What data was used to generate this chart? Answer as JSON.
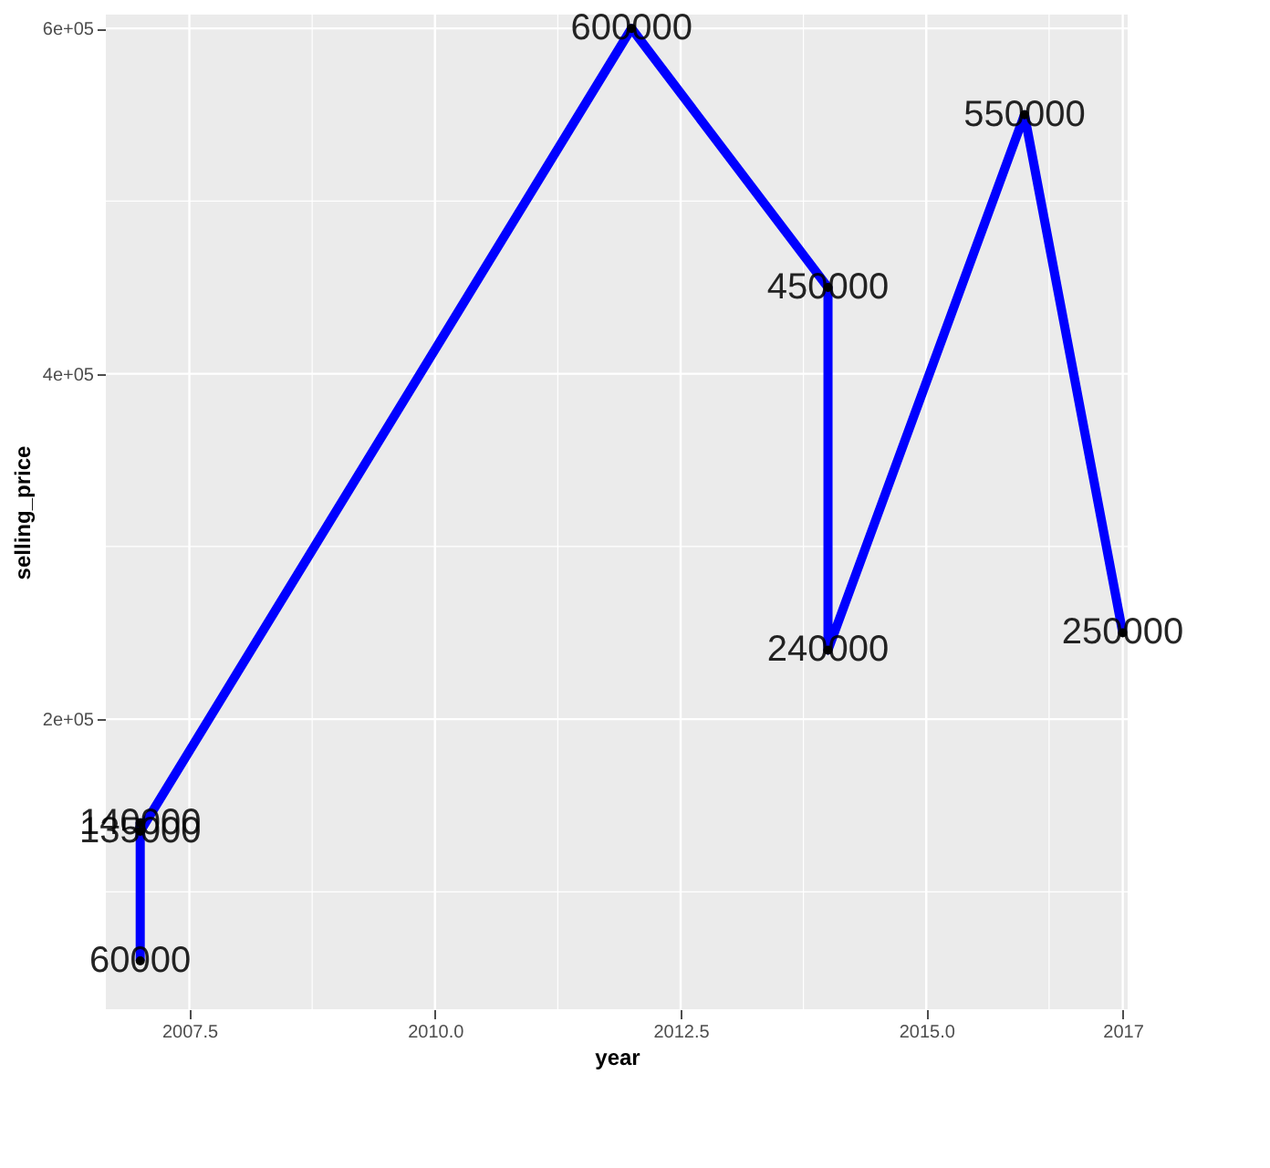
{
  "chart_data": {
    "type": "line",
    "xlabel": "year",
    "ylabel": "selling_price",
    "x": [
      2007,
      2007,
      2007,
      2012,
      2014,
      2014,
      2016,
      2017
    ],
    "series": [
      {
        "color": "#0000ff",
        "values": [
          60000,
          140000,
          135000,
          600000,
          450000,
          240000,
          550000,
          250000
        ]
      }
    ],
    "data_labels": true,
    "marker": "circle",
    "line_style": "solid",
    "grid": true,
    "xlim": [
      2006.65,
      2017.05
    ],
    "ylim": [
      32000,
      608000
    ],
    "xticks": [
      {
        "value": 2007.5,
        "label": "2007.5"
      },
      {
        "value": 2008.75,
        "label": null
      },
      {
        "value": 2010,
        "label": "2010.0"
      },
      {
        "value": 2011.25,
        "label": null
      },
      {
        "value": 2012.5,
        "label": "2012.5"
      },
      {
        "value": 2013.75,
        "label": null
      },
      {
        "value": 2015,
        "label": "2015.0"
      },
      {
        "value": 2016.25,
        "label": null
      },
      {
        "value": 2017,
        "label": "2017"
      }
    ],
    "yticks": [
      {
        "value": 100000,
        "label": null
      },
      {
        "value": 200000,
        "label": "2e+05"
      },
      {
        "value": 300000,
        "label": null
      },
      {
        "value": 400000,
        "label": "4e+05"
      },
      {
        "value": 500000,
        "label": null
      },
      {
        "value": 600000,
        "label": "6e+05"
      }
    ]
  }
}
